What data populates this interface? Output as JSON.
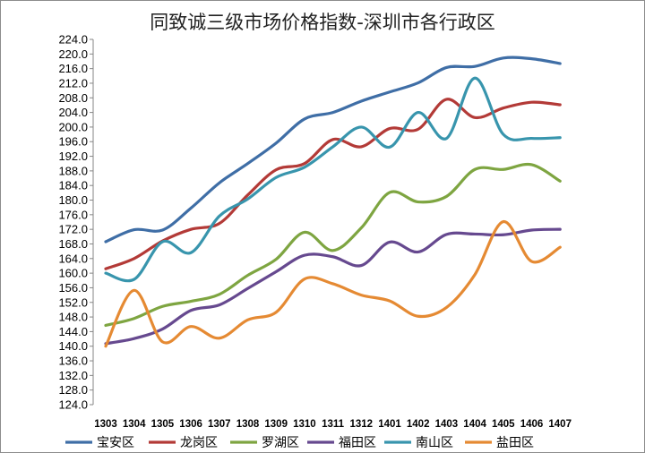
{
  "chart_data": {
    "type": "line",
    "title": "同致诚三级市场价格指数-深圳市各行政区",
    "xlabel": "",
    "ylabel": "",
    "categories": [
      "1303",
      "1304",
      "1305",
      "1306",
      "1307",
      "1308",
      "1309",
      "1310",
      "1311",
      "1312",
      "1401",
      "1402",
      "1403",
      "1404",
      "1405",
      "1406",
      "1407"
    ],
    "ylim": [
      124.0,
      224.0
    ],
    "ytick_step": 4,
    "grid": false,
    "legend_position": "bottom",
    "series": [
      {
        "name": "宝安区",
        "color": "#3f6ea6",
        "values": [
          168.6,
          171.9,
          171.8,
          177.8,
          184.7,
          190.0,
          195.6,
          202.2,
          204.0,
          207.1,
          209.6,
          212.1,
          216.3,
          216.6,
          218.9,
          218.7,
          217.4
        ]
      },
      {
        "name": "龙岗区",
        "color": "#b33a37",
        "values": [
          161.2,
          164.0,
          168.8,
          172.0,
          173.6,
          181.4,
          188.3,
          190.0,
          196.6,
          194.6,
          199.6,
          199.4,
          207.6,
          202.6,
          205.2,
          206.8,
          206.1
        ]
      },
      {
        "name": "罗湖区",
        "color": "#7ea541",
        "values": [
          145.7,
          147.6,
          150.9,
          152.3,
          154.2,
          159.4,
          163.8,
          171.2,
          166.2,
          172.4,
          182.1,
          179.5,
          181.0,
          188.4,
          188.4,
          189.7,
          185.2
        ]
      },
      {
        "name": "福田区",
        "color": "#66498f",
        "values": [
          140.7,
          142.1,
          144.7,
          149.8,
          151.3,
          155.8,
          160.4,
          164.9,
          164.5,
          162.1,
          168.5,
          165.8,
          170.6,
          170.7,
          170.5,
          171.8,
          172.0
        ]
      },
      {
        "name": "南山区",
        "color": "#3895ad",
        "values": [
          160.0,
          158.3,
          168.6,
          165.6,
          175.6,
          180.3,
          186.2,
          189.0,
          194.6,
          200.0,
          194.5,
          204.0,
          196.9,
          213.4,
          198.0,
          196.9,
          197.1
        ]
      },
      {
        "name": "盐田区",
        "color": "#e58a33",
        "values": [
          140.0,
          155.3,
          141.2,
          145.4,
          142.2,
          147.2,
          149.3,
          158.4,
          157.1,
          154.0,
          152.4,
          148.2,
          150.6,
          159.6,
          174.1,
          163.2,
          167.1
        ]
      }
    ]
  }
}
